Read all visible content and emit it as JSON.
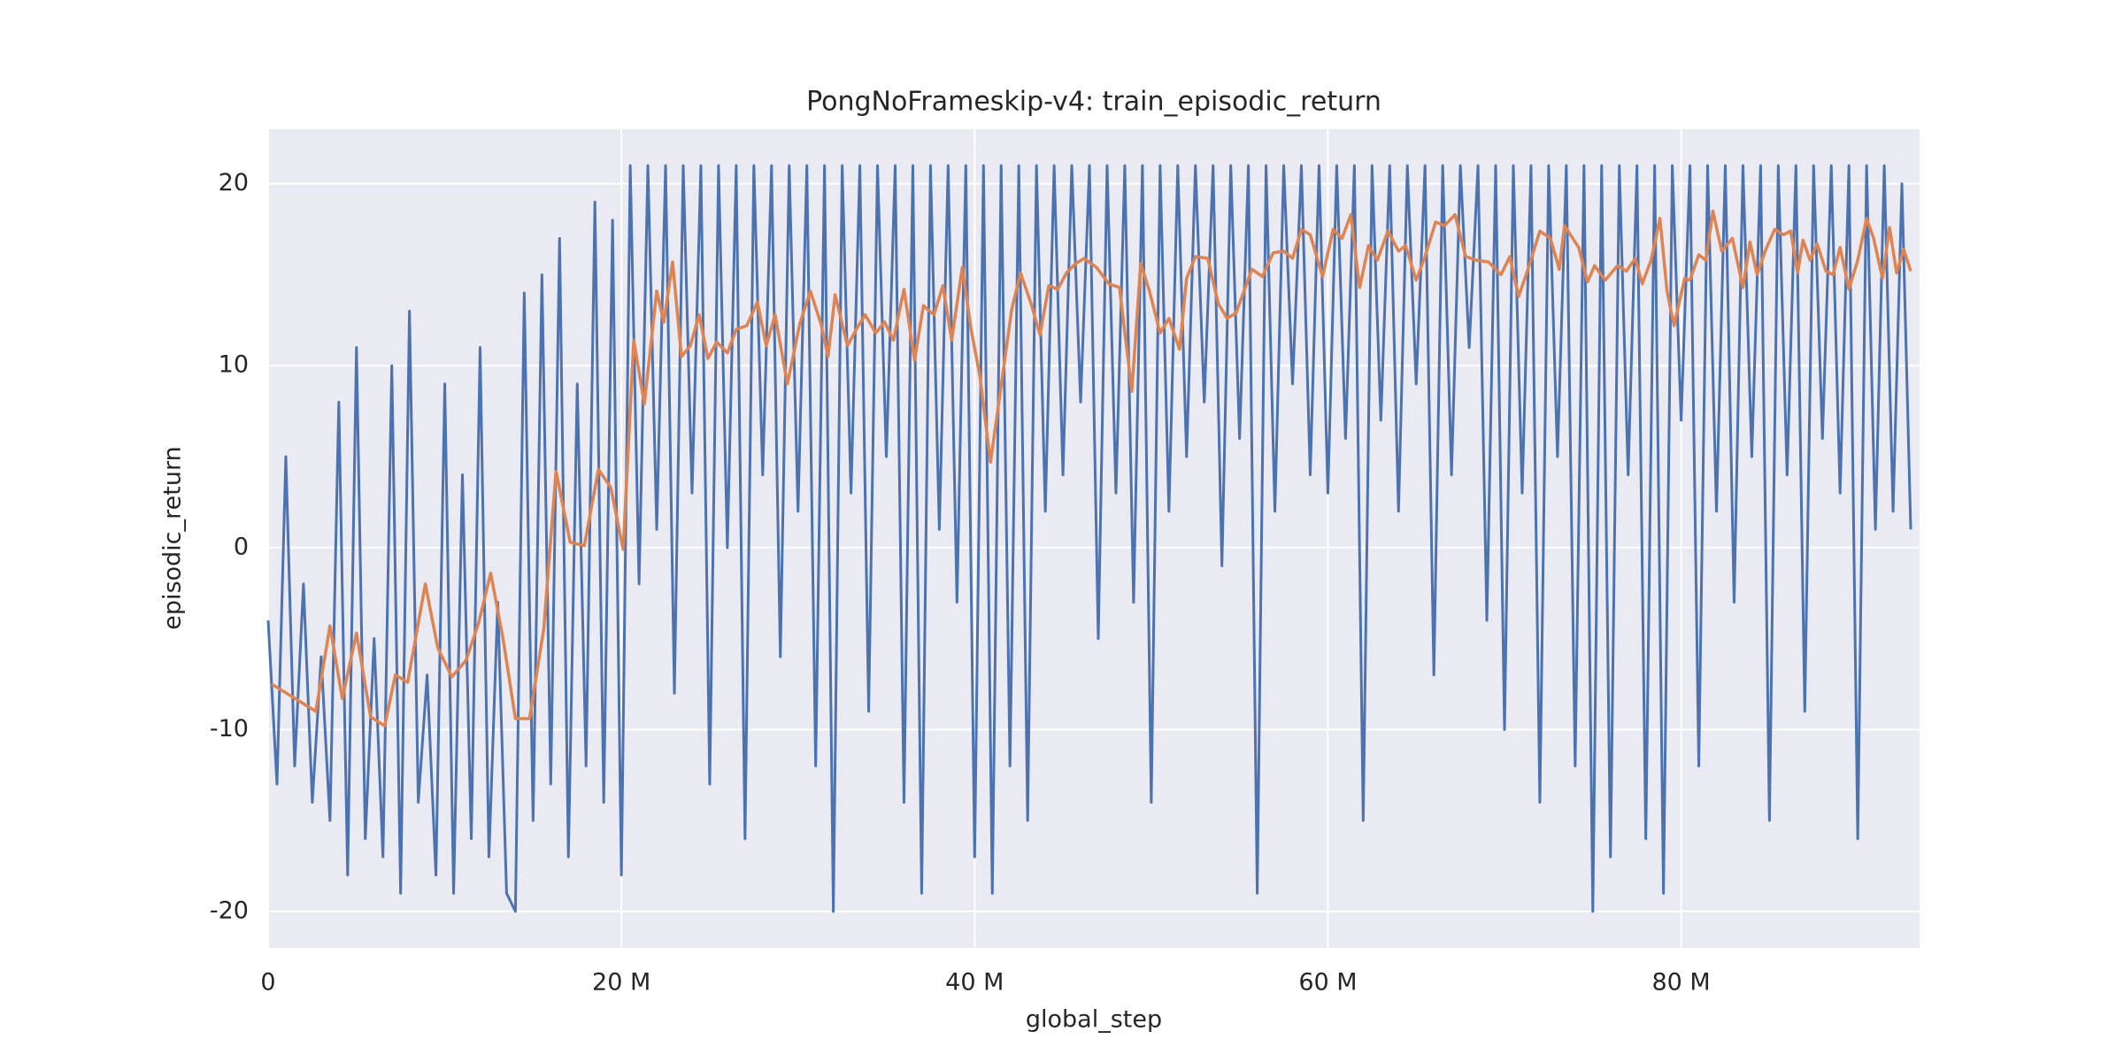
{
  "chart_data": {
    "type": "line",
    "title": "PongNoFrameskip-v4: train_episodic_return",
    "xlabel": "global_step",
    "ylabel": "episodic_return",
    "xlim": [
      0,
      93500000
    ],
    "ylim": [
      -22,
      23
    ],
    "xticks": [
      0,
      {
        "value": 20000000,
        "label": "20 M"
      },
      {
        "value": 40000000,
        "label": "40 M"
      },
      {
        "value": 60000000,
        "label": "60 M"
      },
      {
        "value": 80000000,
        "label": "80 M"
      }
    ],
    "yticks": [
      -20,
      -10,
      0,
      10,
      20
    ],
    "grid": true,
    "background": "#eaeaf2",
    "series": [
      {
        "color": "#4c72b0",
        "width": 3,
        "x": [
          0,
          500000,
          1000000,
          1500000,
          2000000,
          2500000,
          3000000,
          3500000,
          4000000,
          4500000,
          5000000,
          5500000,
          6000000,
          6500000,
          7000000,
          7500000,
          8000000,
          8500000,
          9000000,
          9500000,
          10000000,
          10500000,
          11000000,
          11500000,
          12000000,
          12500000,
          13000000,
          13500000,
          14000000,
          14500000,
          15000000,
          15500000,
          16000000,
          16500000,
          17000000,
          17500000,
          18000000,
          18500000,
          19000000,
          19500000,
          20000000,
          20500000,
          21000000,
          21500000,
          22000000,
          22500000,
          23000000,
          23500000,
          24000000,
          24500000,
          25000000,
          25500000,
          26000000,
          26500000,
          27000000,
          27500000,
          28000000,
          28500000,
          29000000,
          29500000,
          30000000,
          30500000,
          31000000,
          31500000,
          32000000,
          32500000,
          33000000,
          33500000,
          34000000,
          34500000,
          35000000,
          35500000,
          36000000,
          36500000,
          37000000,
          37500000,
          38000000,
          38500000,
          39000000,
          39500000,
          40000000,
          40500000,
          41000000,
          41500000,
          42000000,
          42500000,
          43000000,
          43500000,
          44000000,
          44500000,
          45000000,
          45500000,
          46000000,
          46500000,
          47000000,
          47500000,
          48000000,
          48500000,
          49000000,
          49500000,
          50000000,
          50500000,
          51000000,
          51500000,
          52000000,
          52500000,
          53000000,
          53500000,
          54000000,
          54500000,
          55000000,
          55500000,
          56000000,
          56500000,
          57000000,
          57500000,
          58000000,
          58500000,
          59000000,
          59500000,
          60000000,
          60500000,
          61000000,
          61500000,
          62000000,
          62500000,
          63000000,
          63500000,
          64000000,
          64500000,
          65000000,
          65500000,
          66000000,
          66500000,
          67000000,
          67500000,
          68000000,
          68500000,
          69000000,
          69500000,
          70000000,
          70500000,
          71000000,
          71500000,
          72000000,
          72500000,
          73000000,
          73500000,
          74000000,
          74500000,
          75000000,
          75500000,
          76000000,
          76500000,
          77000000,
          77500000,
          78000000,
          78500000,
          79000000,
          79500000,
          80000000,
          80500000,
          81000000,
          81500000,
          82000000,
          82500000,
          83000000,
          83500000,
          84000000,
          84500000,
          85000000,
          85500000,
          86000000,
          86500000,
          87000000,
          87500000,
          88000000,
          88500000,
          89000000,
          89500000,
          90000000,
          90500000,
          91000000,
          91500000,
          92000000,
          92500000,
          93000000
        ],
        "values": [
          -4,
          -13,
          5,
          -12,
          -2,
          -14,
          -6,
          -15,
          8,
          -18,
          11,
          -16,
          -5,
          -17,
          10,
          -19,
          13,
          -14,
          -7,
          -18,
          9,
          -19,
          4,
          -16,
          11,
          -17,
          -3,
          -19,
          -20,
          14,
          -15,
          15,
          -13,
          17,
          -17,
          9,
          -12,
          19,
          -14,
          18,
          -18,
          21,
          -2,
          21,
          1,
          21,
          -8,
          21,
          3,
          21,
          -13,
          21,
          0,
          21,
          -16,
          21,
          4,
          21,
          -6,
          21,
          2,
          21,
          -12,
          21,
          -20,
          21,
          3,
          21,
          -9,
          21,
          5,
          21,
          -14,
          21,
          -19,
          21,
          1,
          21,
          -3,
          21,
          -17,
          21,
          -19,
          21,
          -12,
          21,
          -15,
          21,
          2,
          21,
          4,
          21,
          8,
          21,
          -5,
          21,
          3,
          21,
          -3,
          21,
          -14,
          21,
          2,
          21,
          5,
          21,
          8,
          21,
          -1,
          21,
          6,
          21,
          -19,
          21,
          2,
          21,
          9,
          21,
          4,
          21,
          3,
          21,
          6,
          21,
          -15,
          21,
          7,
          21,
          2,
          21,
          9,
          21,
          -7,
          21,
          4,
          21,
          11,
          21,
          -4,
          21,
          -10,
          21,
          3,
          21,
          -14,
          21,
          5,
          21,
          -12,
          21,
          -20,
          21,
          -17,
          21,
          4,
          21,
          -16,
          21,
          -19,
          21,
          7,
          21,
          -12,
          21,
          2,
          21,
          -3,
          21,
          5,
          21,
          -15,
          21,
          4,
          21,
          -9,
          21,
          6,
          21,
          3,
          21,
          -16,
          21,
          1,
          21,
          2,
          20,
          1
        ]
      },
      {
        "color": "#dd8452",
        "width": 3.5,
        "x": [
          200000,
          2700000,
          3500000,
          4200000,
          5000000,
          5800000,
          6600000,
          7200000,
          7900000,
          8900000,
          9600000,
          10400000,
          11200000,
          11900000,
          12600000,
          13300000,
          14000000,
          14800000,
          15600000,
          16300000,
          17100000,
          17900000,
          18700000,
          19400000,
          20100000,
          20700000,
          21300000,
          22000000,
          22400000,
          22900000,
          23400000,
          23900000,
          24400000,
          24900000,
          25400000,
          26000000,
          26500000,
          27100000,
          27700000,
          28200000,
          28700000,
          29400000,
          30100000,
          30700000,
          31300000,
          31700000,
          32100000,
          32800000,
          33300000,
          33800000,
          34400000,
          34900000,
          35400000,
          36000000,
          36600000,
          37100000,
          37700000,
          38200000,
          38700000,
          39300000,
          39800000,
          40300000,
          40900000,
          41600000,
          42100000,
          42600000,
          43200000,
          43700000,
          44200000,
          44700000,
          45200000,
          45700000,
          46200000,
          46900000,
          47600000,
          48200000,
          48900000,
          49400000,
          49900000,
          50500000,
          51000000,
          51600000,
          52000000,
          52500000,
          53200000,
          53800000,
          54300000,
          54800000,
          55700000,
          56300000,
          56900000,
          57500000,
          58000000,
          58500000,
          59000000,
          59700000,
          60300000,
          60800000,
          61300000,
          61800000,
          62300000,
          62800000,
          63400000,
          64000000,
          64400000,
          65000000,
          65500000,
          66100000,
          66600000,
          67200000,
          67800000,
          68400000,
          69100000,
          69800000,
          70300000,
          70800000,
          71400000,
          72000000,
          72600000,
          73100000,
          73400000,
          74200000,
          74700000,
          75100000,
          75700000,
          76400000,
          76900000,
          77400000,
          77800000,
          78300000,
          78800000,
          79200000,
          79600000,
          80200000,
          80500000,
          81000000,
          81400000,
          81800000,
          82300000,
          82900000,
          83500000,
          83900000,
          84300000,
          84800000,
          85300000,
          85800000,
          86200000,
          86600000,
          86900000,
          87300000,
          87700000,
          88200000,
          88600000,
          89000000,
          89500000,
          90000000,
          90500000,
          90900000,
          91400000,
          91800000,
          92200000,
          92600000,
          93000000
        ],
        "values": [
          -7.5,
          -9,
          -4.3,
          -8.3,
          -4.7,
          -9.3,
          -9.8,
          -7,
          -7.4,
          -2,
          -5.5,
          -7.1,
          -6.2,
          -4.2,
          -1.4,
          -5,
          -9.4,
          -9.4,
          -4.5,
          4.2,
          0.3,
          0.1,
          4.3,
          3.3,
          -0.1,
          11.4,
          7.9,
          14.1,
          12.4,
          15.7,
          10.5,
          11.1,
          12.8,
          10.4,
          11.3,
          10.7,
          12,
          12.2,
          13.5,
          11.1,
          12.8,
          9,
          12.3,
          14.1,
          12.3,
          10.5,
          13.9,
          11.1,
          12,
          12.8,
          11.8,
          12.4,
          11.4,
          14.2,
          10.3,
          13.3,
          12.8,
          14.4,
          11.4,
          15.4,
          12,
          9.4,
          4.7,
          9.6,
          13.1,
          15.1,
          13.4,
          11.7,
          14.4,
          14.2,
          15.1,
          15.6,
          15.9,
          15.4,
          14.5,
          14.3,
          8.6,
          15.6,
          14.1,
          11.8,
          12.6,
          10.9,
          14.8,
          16,
          15.9,
          13.4,
          12.6,
          12.9,
          15.3,
          14.9,
          16.2,
          16.3,
          15.9,
          17.5,
          17.2,
          14.9,
          17.5,
          17,
          18.3,
          14.3,
          16.6,
          15.8,
          17.4,
          16.3,
          16.6,
          14.7,
          16,
          17.9,
          17.7,
          18.3,
          16,
          15.8,
          15.7,
          15,
          16,
          13.8,
          15.5,
          17.4,
          17,
          15.3,
          17.7,
          16.5,
          14.6,
          15.5,
          14.7,
          15.5,
          15.2,
          15.9,
          14.5,
          15.8,
          18.1,
          14.1,
          12.2,
          14.8,
          14.7,
          16.1,
          15.8,
          18.5,
          16.3,
          17,
          14.3,
          16.8,
          15,
          16.4,
          17.5,
          17.2,
          17.4,
          15.1,
          16.9,
          15.8,
          16.7,
          15.2,
          15,
          16.5,
          14.2,
          15.8,
          18.1,
          17,
          14.8,
          17.6,
          15.1,
          16.4,
          15.2
        ]
      }
    ]
  }
}
